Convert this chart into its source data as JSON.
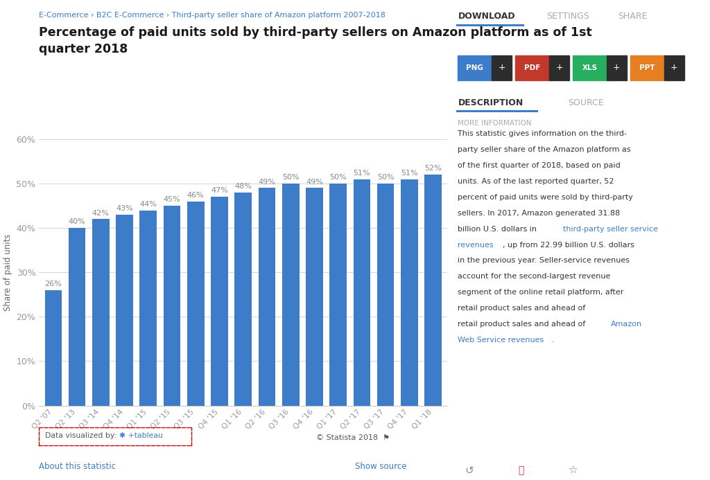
{
  "categories": [
    "Q2 '07",
    "Q2 '13",
    "Q3 '14",
    "Q4 '14",
    "Q1 '15",
    "Q2 '15",
    "Q3 '15",
    "Q4 '15",
    "Q1 '16",
    "Q2 '16",
    "Q3 '16",
    "Q4 '16",
    "Q1 '17",
    "Q2 '17",
    "Q3 '17",
    "Q4 '17",
    "Q1 '18"
  ],
  "values": [
    26,
    40,
    42,
    43,
    44,
    45,
    46,
    47,
    48,
    49,
    50,
    49,
    50,
    51,
    50,
    51,
    52
  ],
  "bar_color": "#3d7cc9",
  "ylabel": "Share of paid units",
  "ylim": [
    0,
    60
  ],
  "yticks": [
    0,
    10,
    20,
    30,
    40,
    50,
    60
  ],
  "background_color": "#ffffff",
  "plot_bg_color": "#ffffff",
  "grid_color": "#d8d8d8",
  "title_line1": "Percentage of paid units sold by third-party sellers on Amazon platform as of 1st",
  "title_line2": "quarter 2018",
  "breadcrumb": "E-Commerce › B2C E-Commerce › Third-party seller share of Amazon platform 2007-2018",
  "label_fontsize": 8.0,
  "value_label_color": "#888888",
  "btn_labels": [
    "PNG",
    "PDF",
    "XLS",
    "PPT"
  ],
  "btn_icon_colors": [
    "#3d7cc9",
    "#c0392b",
    "#27ae60",
    "#e67e22"
  ],
  "desc_text_line1": "This statistic gives information on the third-",
  "desc_text_line2": "party seller share of the Amazon platform as",
  "desc_text_line3": "of the first quarter of 2018, based on paid",
  "desc_text_line4": "units. As of the last reported quarter, 52",
  "desc_text_line5": "percent of paid units were sold by third-party",
  "desc_text_line6": "sellers. In 2017, Amazon generated 31.88",
  "desc_text_line7": "billion U.S. dollars in ",
  "desc_text_link1": "third-party seller service",
  "desc_text_line8": "revenues",
  "desc_text_line9": ", up from 22.99 billion U.S. dollars",
  "desc_text_line10": "in the previous year. Seller-service revenues",
  "desc_text_line11": "account for the second-largest revenue",
  "desc_text_line12": "segment of the online retail platform, after",
  "desc_text_line13": "retail product sales and ahead of ",
  "desc_text_link2": "Amazon",
  "desc_text_line14": "Web Service revenues",
  "desc_text_link3": ".",
  "link_color": "#3d7cc9"
}
